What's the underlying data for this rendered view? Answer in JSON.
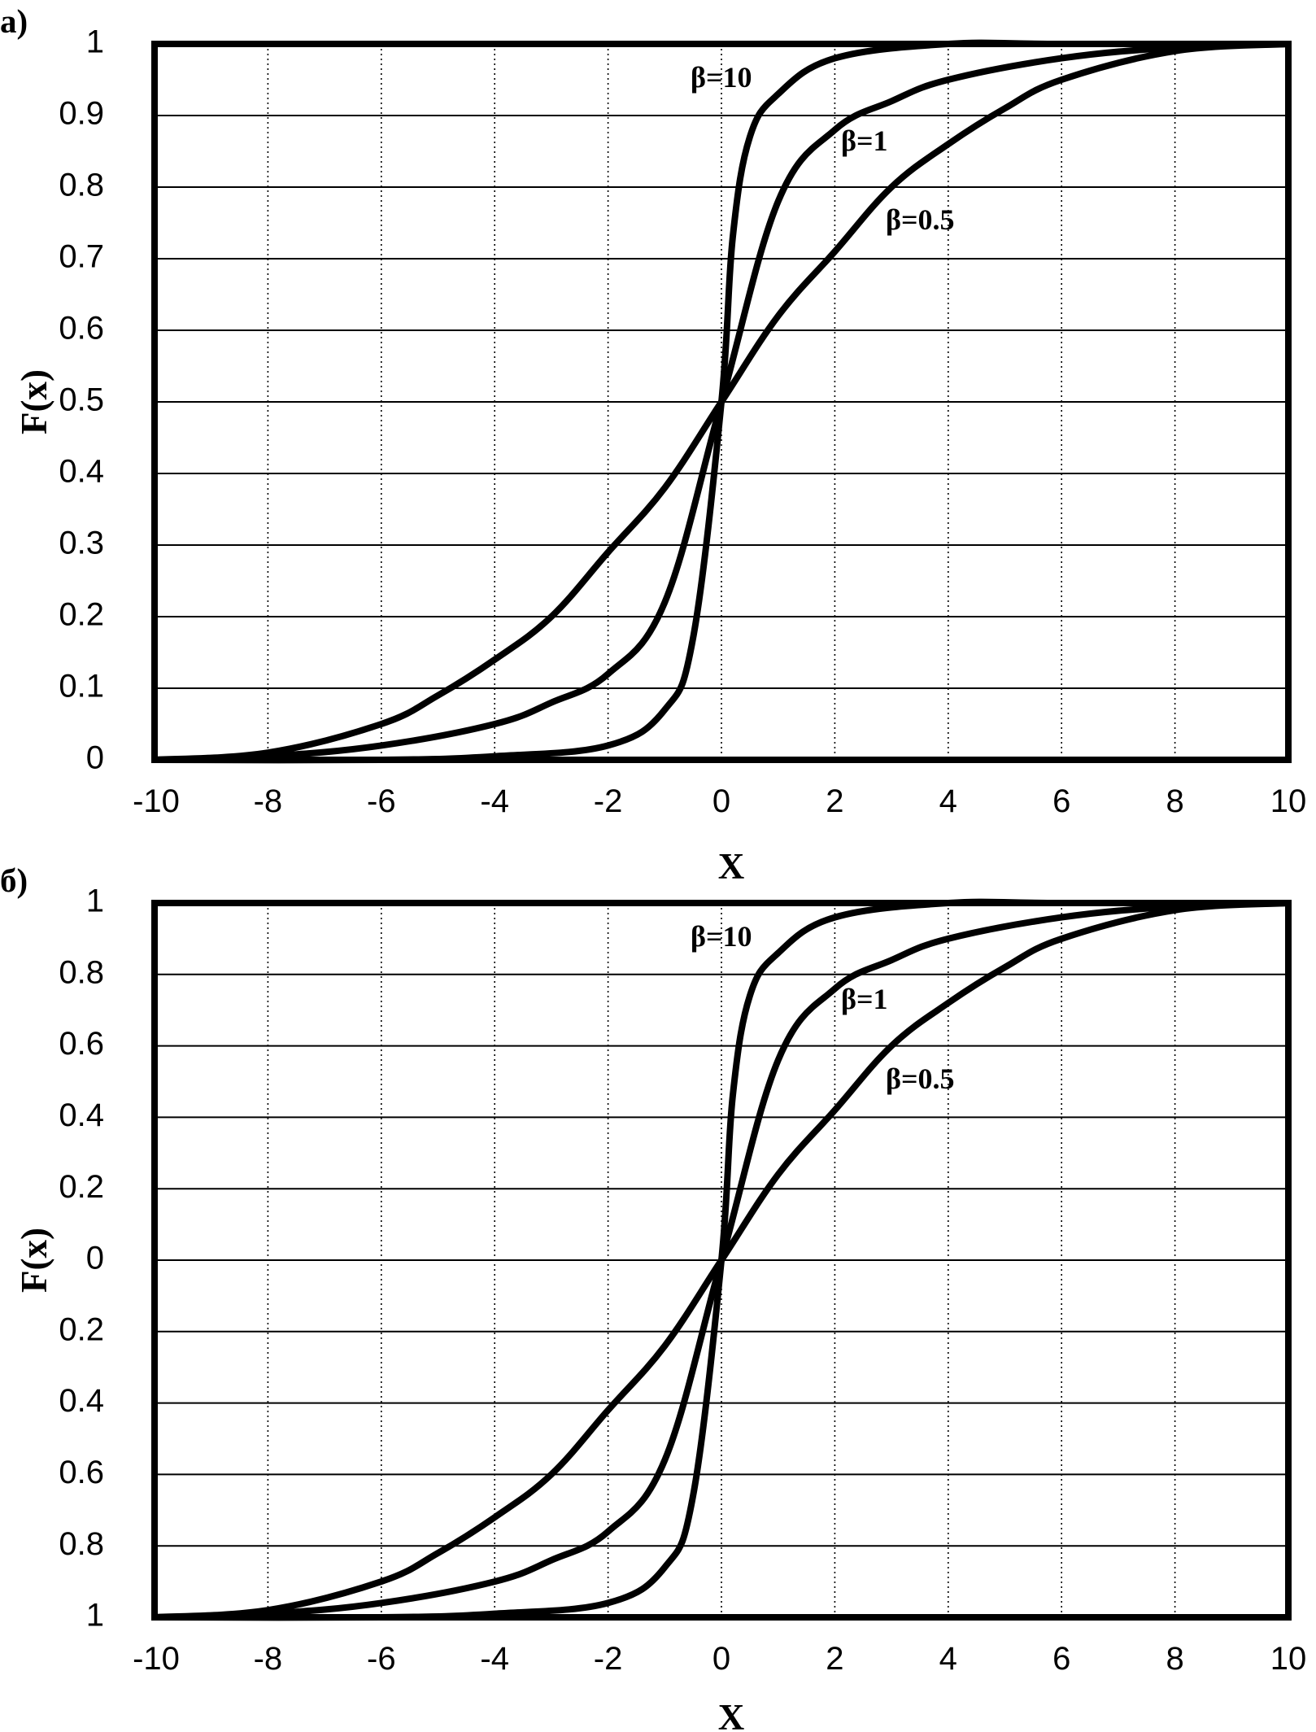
{
  "chart_data": [
    {
      "type": "line",
      "panel_label": "а)",
      "xlabel": "X",
      "ylabel": "F(x)",
      "xlim": [
        -10,
        10
      ],
      "ylim": [
        0,
        1
      ],
      "x_ticks": [
        "-10",
        "-8",
        "-6",
        "-4",
        "-2",
        "0",
        "2",
        "4",
        "6",
        "8",
        "10"
      ],
      "y_ticks": [
        "0",
        "0.1",
        "0.2",
        "0.3",
        "0.4",
        "0.5",
        "0.6",
        "0.7",
        "0.8",
        "0.9",
        "1"
      ],
      "grid": true,
      "series": [
        {
          "name": "β=10",
          "x": [
            -10,
            -6,
            -4,
            -2,
            -1,
            -0.5,
            0,
            0.2,
            0.5,
            1,
            2,
            4,
            6,
            10
          ],
          "y": [
            0.0,
            0.0,
            0.005,
            0.02,
            0.07,
            0.17,
            0.5,
            0.73,
            0.87,
            0.93,
            0.98,
            1.0,
            1.0,
            1.0
          ]
        },
        {
          "name": "β=1",
          "x": [
            -10,
            -8,
            -6,
            -4,
            -3,
            -2,
            -1,
            0,
            1,
            2,
            3,
            4,
            6,
            8,
            10
          ],
          "y": [
            0.0,
            0.005,
            0.02,
            0.05,
            0.08,
            0.12,
            0.22,
            0.5,
            0.78,
            0.88,
            0.92,
            0.95,
            0.98,
            0.995,
            1.0
          ]
        },
        {
          "name": "β=0.5",
          "x": [
            -10,
            -8,
            -6,
            -5,
            -4,
            -3,
            -2,
            -1,
            0,
            1,
            2,
            3,
            4,
            5,
            6,
            8,
            10
          ],
          "y": [
            0.0,
            0.01,
            0.05,
            0.09,
            0.14,
            0.2,
            0.29,
            0.38,
            0.5,
            0.62,
            0.71,
            0.8,
            0.86,
            0.91,
            0.95,
            0.99,
            1.0
          ]
        }
      ]
    },
    {
      "type": "line",
      "panel_label": "б)",
      "xlabel": "X",
      "ylabel": "F(x)",
      "xlim": [
        -10,
        10
      ],
      "ylim": [
        -1,
        1
      ],
      "x_ticks": [
        "-10",
        "-8",
        "-6",
        "-4",
        "-2",
        "0",
        "2",
        "4",
        "6",
        "8",
        "10"
      ],
      "y_ticks": [
        "1",
        "0.8",
        "0.6",
        "0.4",
        "0.2",
        "0",
        "0.2",
        "0.4",
        "0.6",
        "0.8",
        "1"
      ],
      "grid": true,
      "series": [
        {
          "name": "β=10",
          "x": [
            -10,
            -6,
            -4,
            -2,
            -1,
            -0.5,
            0,
            0.2,
            0.5,
            1,
            2,
            4,
            6,
            10
          ],
          "y": [
            -1.0,
            -1.0,
            -0.99,
            -0.96,
            -0.86,
            -0.66,
            0.0,
            0.46,
            0.74,
            0.86,
            0.96,
            1.0,
            1.0,
            1.0
          ]
        },
        {
          "name": "β=1",
          "x": [
            -10,
            -8,
            -6,
            -4,
            -3,
            -2,
            -1,
            0,
            1,
            2,
            3,
            4,
            6,
            8,
            10
          ],
          "y": [
            -1.0,
            -0.99,
            -0.96,
            -0.9,
            -0.84,
            -0.76,
            -0.56,
            0.0,
            0.56,
            0.76,
            0.84,
            0.9,
            0.96,
            0.99,
            1.0
          ]
        },
        {
          "name": "β=0.5",
          "x": [
            -10,
            -8,
            -6,
            -5,
            -4,
            -3,
            -2,
            -1,
            0,
            1,
            2,
            3,
            4,
            5,
            6,
            8,
            10
          ],
          "y": [
            -1.0,
            -0.98,
            -0.9,
            -0.82,
            -0.72,
            -0.6,
            -0.42,
            -0.24,
            0.0,
            0.24,
            0.42,
            0.6,
            0.72,
            0.82,
            0.9,
            0.98,
            1.0
          ]
        }
      ]
    }
  ]
}
